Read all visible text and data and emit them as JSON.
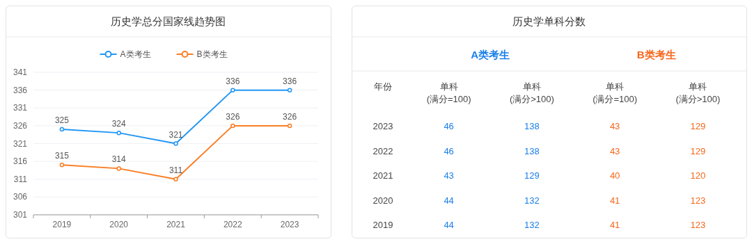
{
  "chart_data": [
    {
      "type": "line",
      "title": "历史学总分国家线趋势图",
      "categories": [
        "2019",
        "2020",
        "2021",
        "2022",
        "2023"
      ],
      "series": [
        {
          "name": "A类考生",
          "color": "#2196f3",
          "values": [
            325,
            324,
            321,
            336,
            336
          ]
        },
        {
          "name": "B类考生",
          "color": "#fb7d23",
          "values": [
            315,
            314,
            311,
            326,
            326
          ]
        }
      ],
      "ylim": [
        301,
        341
      ],
      "yticks": [
        301,
        306,
        311,
        316,
        321,
        326,
        331,
        336,
        341
      ],
      "grid": "y",
      "legend": "top",
      "marker": "circle",
      "line_style": "solid",
      "data_labels": true
    },
    {
      "type": "heatmap",
      "title": "历史学单科分数",
      "ylabel": "年份",
      "categories": [
        "单科\n(满分=100)",
        "单科\n(满分>100)",
        "单科\n(满分=100)",
        "单科\n(满分>100)"
      ],
      "y_categories": [
        "2023",
        "2022",
        "2021",
        "2020",
        "2019"
      ],
      "cells": [
        [
          46,
          138,
          43,
          129
        ],
        [
          46,
          138,
          43,
          129
        ],
        [
          43,
          129,
          40,
          120
        ],
        [
          44,
          132,
          41,
          123
        ],
        [
          44,
          132,
          41,
          123
        ]
      ],
      "colors": [
        "#1a7fe8",
        "#1a7fe8",
        "#f5661b",
        "#f5661b"
      ],
      "data_labels": true,
      "annotations": [
        "A类考生",
        "B类考生"
      ]
    }
  ]
}
